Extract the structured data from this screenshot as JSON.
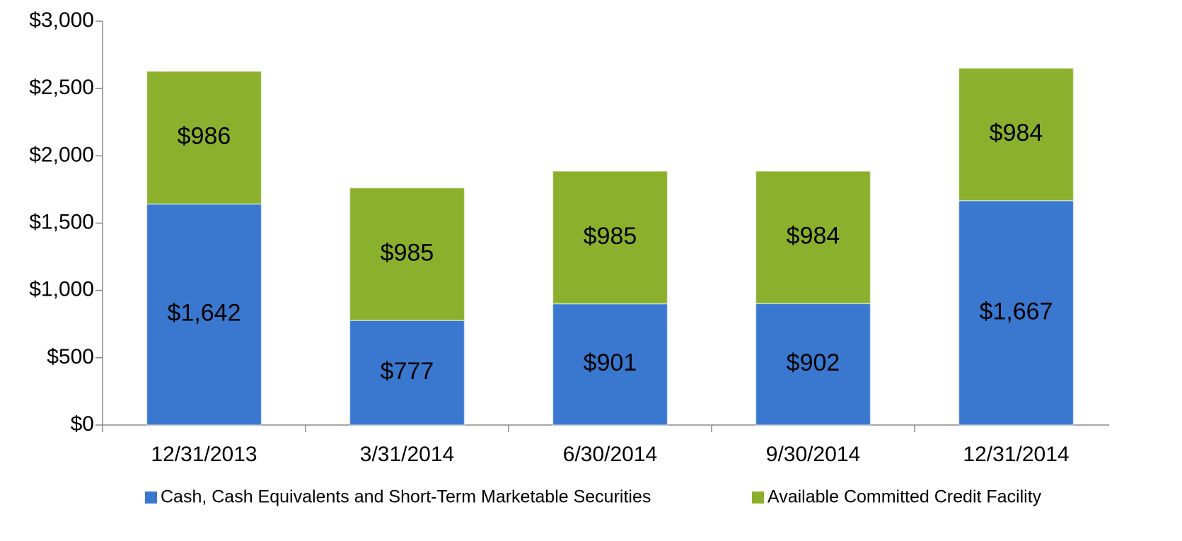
{
  "chart_data": {
    "type": "stacked_bar",
    "categories": [
      "12/31/2013",
      "3/31/2014",
      "6/30/2014",
      "9/30/2014",
      "12/31/2014"
    ],
    "series": [
      {
        "name": "Cash, Cash Equivalents and Short-Term Marketable Securities",
        "color": "#3a78d0",
        "values": [
          1642,
          777,
          901,
          902,
          1667
        ],
        "value_labels": [
          "$1,642",
          "$777",
          "$901",
          "$902",
          "$1,667"
        ]
      },
      {
        "name": "Available Committed Credit Facility",
        "color": "#8ab02e",
        "values": [
          986,
          985,
          985,
          984,
          984
        ],
        "value_labels": [
          "$986",
          "$985",
          "$985",
          "$984",
          "$984"
        ]
      }
    ],
    "ylim": [
      0,
      3000
    ],
    "yticks": [
      {
        "value": 0,
        "label": "$0"
      },
      {
        "value": 500,
        "label": "$500"
      },
      {
        "value": 1000,
        "label": "$1,000"
      },
      {
        "value": 1500,
        "label": "$1,500"
      },
      {
        "value": 2000,
        "label": "$2,000"
      },
      {
        "value": 2500,
        "label": "$2,500"
      },
      {
        "value": 3000,
        "label": "$3,000"
      }
    ],
    "legend": "bottom"
  }
}
